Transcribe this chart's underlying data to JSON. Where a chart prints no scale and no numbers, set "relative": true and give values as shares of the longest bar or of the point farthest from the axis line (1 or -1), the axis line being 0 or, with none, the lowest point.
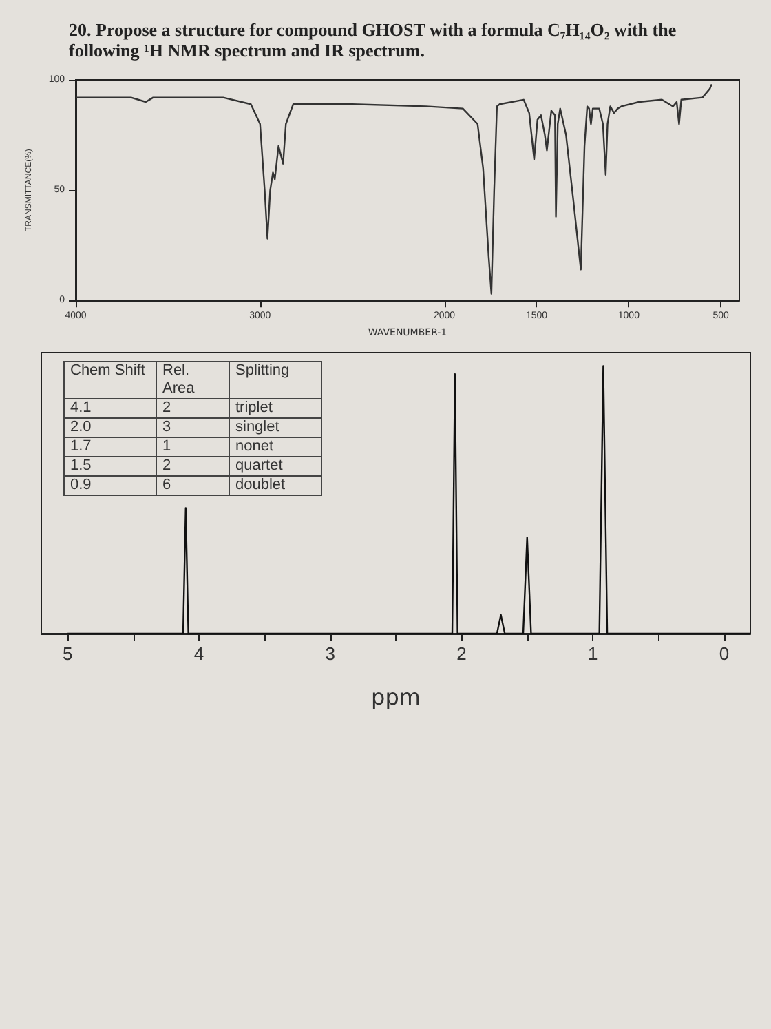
{
  "chart_data": [
    {
      "type": "line",
      "title": "20. Propose a structure for compound GHOST with a formula C₇H₁₄O₂ with the following ¹H NMR spectrum and IR spectrum.",
      "xlabel": "WAVENUMBER-1",
      "ylabel": "TRANSMITTANCE(%)",
      "x": [
        4000,
        3700,
        3620,
        3580,
        3200,
        3050,
        3000,
        2975,
        2960,
        2945,
        2930,
        2920,
        2900,
        2875,
        2860,
        2820,
        2500,
        2100,
        1900,
        1820,
        1790,
        1760,
        1745,
        1730,
        1715,
        1700,
        1570,
        1540,
        1513,
        1495,
        1476,
        1455,
        1444,
        1420,
        1400,
        1395,
        1385,
        1372,
        1340,
        1300,
        1260,
        1240,
        1225,
        1215,
        1205,
        1195,
        1160,
        1140,
        1125,
        1115,
        1100,
        1080,
        1060,
        1040,
        944,
        820,
        760,
        740,
        727,
        715,
        600,
        560,
        550
      ],
      "values": [
        92,
        92,
        90,
        92,
        92,
        89,
        80,
        50,
        28,
        50,
        58,
        55,
        70,
        62,
        80,
        89,
        89,
        88,
        87,
        80,
        60,
        20,
        3,
        50,
        88,
        89,
        91,
        85,
        64,
        82,
        84,
        75,
        68,
        86,
        84,
        38,
        80,
        87,
        75,
        45,
        14,
        70,
        88,
        87,
        80,
        87,
        87,
        80,
        57,
        80,
        88,
        85,
        87,
        88,
        90,
        91,
        88,
        90,
        80,
        91,
        92,
        96,
        98
      ],
      "color": "#333333",
      "xlim": [
        4000,
        400
      ],
      "xticks": [
        4000,
        3000,
        2000,
        1500,
        1000,
        500
      ],
      "ylim": [
        0,
        100
      ],
      "yticks": [
        0,
        50,
        100
      ],
      "grid": false,
      "marker": "none",
      "line_style": "solid"
    },
    {
      "type": "line",
      "relative": true,
      "xlabel": "ppm",
      "x": [
        5,
        4.12,
        4.1,
        4.08,
        2.07,
        2.05,
        2.03,
        1.73,
        1.7,
        1.67,
        1.53,
        1.5,
        1.47,
        0.95,
        0.92,
        0.89,
        -0.2
      ],
      "values": [
        0,
        0,
        0.47,
        0,
        0,
        0.97,
        0,
        0,
        0.07,
        0,
        0,
        0.36,
        0,
        0,
        1,
        0,
        0
      ],
      "color": "#111111",
      "xlim": [
        5.2,
        -0.2
      ],
      "xticks": [
        5,
        {
          "value": 4.5,
          "label": null
        },
        4,
        {
          "value": 3.5,
          "label": null
        },
        3,
        {
          "value": 2.5,
          "label": null
        },
        2,
        {
          "value": 1.5,
          "label": null
        },
        1,
        {
          "value": 0.5,
          "label": null
        },
        0
      ],
      "grid": false,
      "marker": "none",
      "line_style": "solid",
      "annotations": [
        "Chem Shift",
        "Rel. Area",
        "Splitting",
        "4.1",
        "2",
        "triplet",
        "2.0",
        "3",
        "singlet",
        "1.7",
        "1",
        "nonet",
        "1.5",
        "2",
        "quartet",
        "0.9",
        "6",
        "doublet"
      ]
    }
  ]
}
